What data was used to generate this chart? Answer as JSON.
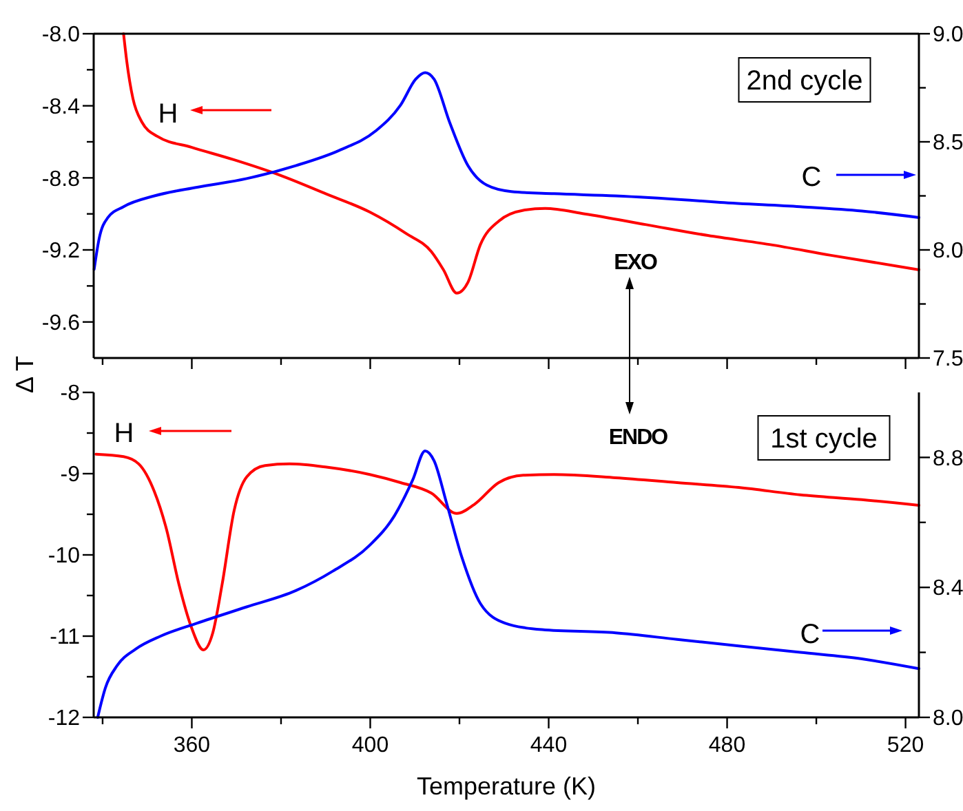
{
  "chart_data": [
    {
      "type": "line",
      "ylabel": "Δ T",
      "xlim": [
        338,
        523
      ],
      "xticks": [
        {
          "value": 340,
          "label": null
        },
        360,
        {
          "value": 380,
          "label": null
        },
        400,
        {
          "value": 420,
          "label": null
        },
        440,
        {
          "value": 460,
          "label": null
        },
        480,
        {
          "value": 500,
          "label": null
        },
        520
      ],
      "tick_labels": "y",
      "ylim": [
        -9.8,
        -8.0
      ],
      "yticks": [
        {
          "value": -8.0,
          "label": "-8.0"
        },
        {
          "value": -8.2,
          "label": null
        },
        {
          "value": -8.4,
          "label": "-8.4"
        },
        {
          "value": -8.6,
          "label": null
        },
        {
          "value": -8.8,
          "label": "-8.8"
        },
        {
          "value": -9.0,
          "label": null
        },
        {
          "value": -9.2,
          "label": "-9.2"
        },
        {
          "value": -9.4,
          "label": null
        },
        {
          "value": -9.6,
          "label": "-9.6"
        }
      ],
      "y2lim": [
        7.5,
        9.0
      ],
      "y2ticks": [
        {
          "value": 7.5,
          "label": "7.5"
        },
        {
          "value": 7.75,
          "label": null
        },
        {
          "value": 8.0,
          "label": "8.0"
        },
        {
          "value": 8.25,
          "label": null
        },
        {
          "value": 8.5,
          "label": "8.5"
        },
        {
          "value": 8.75,
          "label": null
        },
        {
          "value": 9.0,
          "label": "9.0"
        }
      ],
      "annotations": [
        "H",
        "C",
        "2nd cycle",
        "EXO"
      ],
      "series": [
        {
          "color": "#ff0000",
          "x": [
            344.7,
            345.4,
            346.8,
            348.8,
            352.3,
            359.9,
            369.5,
            379.2,
            390.2,
            399.9,
            408.1,
            413.7,
            416.4,
            419.4,
            421.9,
            424.7,
            428.8,
            434.3,
            439.2,
            448.1,
            461.9,
            475.7,
            489.5,
            503.3,
            523
          ],
          "values": [
            -8.0,
            -8.15,
            -8.36,
            -8.49,
            -8.57,
            -8.63,
            -8.7,
            -8.78,
            -8.89,
            -8.99,
            -9.11,
            -9.21,
            -9.31,
            -9.44,
            -9.38,
            -9.17,
            -9.04,
            -8.98,
            -8.97,
            -9.0,
            -9.06,
            -9.12,
            -9.17,
            -9.23,
            -9.31
          ]
        },
        {
          "color": "#0000ff",
          "axis": "y2",
          "x": [
            338.1,
            339.2,
            341.2,
            344.7,
            351.6,
            361.2,
            372.3,
            383.3,
            393.0,
            401.2,
            406.8,
            410.2,
            412.3,
            414.3,
            417.8,
            421.9,
            426.1,
            431.6,
            441.2,
            455.0,
            471.6,
            478.5,
            496.4,
            510.2,
            523
          ],
          "values": [
            7.91,
            8.05,
            8.15,
            8.2,
            8.25,
            8.29,
            8.33,
            8.39,
            8.46,
            8.55,
            8.67,
            8.79,
            8.82,
            8.79,
            8.59,
            8.39,
            8.3,
            8.27,
            8.26,
            8.25,
            8.23,
            8.22,
            8.2,
            8.18,
            8.15
          ]
        }
      ]
    },
    {
      "type": "line",
      "xlabel": "Temperature (K)",
      "xlim": [
        338,
        523
      ],
      "xticks": [
        {
          "value": 340,
          "label": null
        },
        {
          "value": 360,
          "label": "360"
        },
        {
          "value": 380,
          "label": null
        },
        {
          "value": 400,
          "label": "400"
        },
        {
          "value": 420,
          "label": null
        },
        {
          "value": 440,
          "label": "440"
        },
        {
          "value": 460,
          "label": null
        },
        {
          "value": 480,
          "label": "480"
        },
        {
          "value": 500,
          "label": null
        },
        {
          "value": 520,
          "label": "520"
        }
      ],
      "ylim": [
        -12,
        -8
      ],
      "yticks": [
        {
          "value": -8,
          "label": "-8"
        },
        {
          "value": -8.5,
          "label": null
        },
        {
          "value": -9,
          "label": "-9"
        },
        {
          "value": -9.5,
          "label": null
        },
        {
          "value": -10,
          "label": "-10"
        },
        {
          "value": -10.5,
          "label": null
        },
        {
          "value": -11,
          "label": "-11"
        },
        {
          "value": -11.5,
          "label": null
        },
        {
          "value": -12,
          "label": "-12"
        }
      ],
      "y2lim": [
        8.0,
        9.0
      ],
      "y2ticks": [
        {
          "value": 8.0,
          "label": "8.0"
        },
        {
          "value": 8.2,
          "label": null
        },
        {
          "value": 8.4,
          "label": "8.4"
        },
        {
          "value": 8.6,
          "label": null
        },
        {
          "value": 8.8,
          "label": "8.8"
        }
      ],
      "annotations": [
        "H",
        "C",
        "1st cycle",
        "ENDO"
      ],
      "series": [
        {
          "color": "#ff0000",
          "x": [
            338.5,
            344.7,
            348.1,
            351.6,
            354.3,
            357.1,
            359.9,
            362.6,
            364.7,
            366.8,
            369.5,
            372.3,
            376.4,
            381.9,
            390.2,
            399.9,
            406.8,
            413.7,
            419.4,
            423.3,
            428.8,
            434.3,
            441.2,
            455.0,
            468.8,
            482.6,
            496.4,
            510.2,
            523
          ],
          "values": [
            -8.76,
            -8.79,
            -8.88,
            -9.22,
            -9.68,
            -10.36,
            -10.89,
            -11.17,
            -10.96,
            -10.36,
            -9.45,
            -9.04,
            -8.9,
            -8.88,
            -8.92,
            -9.01,
            -9.11,
            -9.24,
            -9.49,
            -9.38,
            -9.11,
            -9.02,
            -9.01,
            -9.05,
            -9.11,
            -9.17,
            -9.26,
            -9.32,
            -9.39
          ]
        },
        {
          "color": "#0000ff",
          "axis": "y2",
          "x": [
            338.9,
            340.6,
            343.3,
            347.4,
            353.0,
            361.2,
            372.3,
            383.3,
            391.6,
            399.9,
            405.4,
            409.5,
            412.3,
            414.3,
            417.1,
            420.6,
            424.7,
            430.2,
            438.5,
            455.0,
            468.8,
            482.6,
            496.4,
            510.2,
            523
          ],
          "values": [
            8.0,
            8.09,
            8.16,
            8.21,
            8.25,
            8.29,
            8.34,
            8.39,
            8.45,
            8.53,
            8.62,
            8.73,
            8.82,
            8.79,
            8.66,
            8.49,
            8.35,
            8.29,
            8.27,
            8.26,
            8.24,
            8.22,
            8.2,
            8.18,
            8.15
          ]
        }
      ]
    }
  ]
}
